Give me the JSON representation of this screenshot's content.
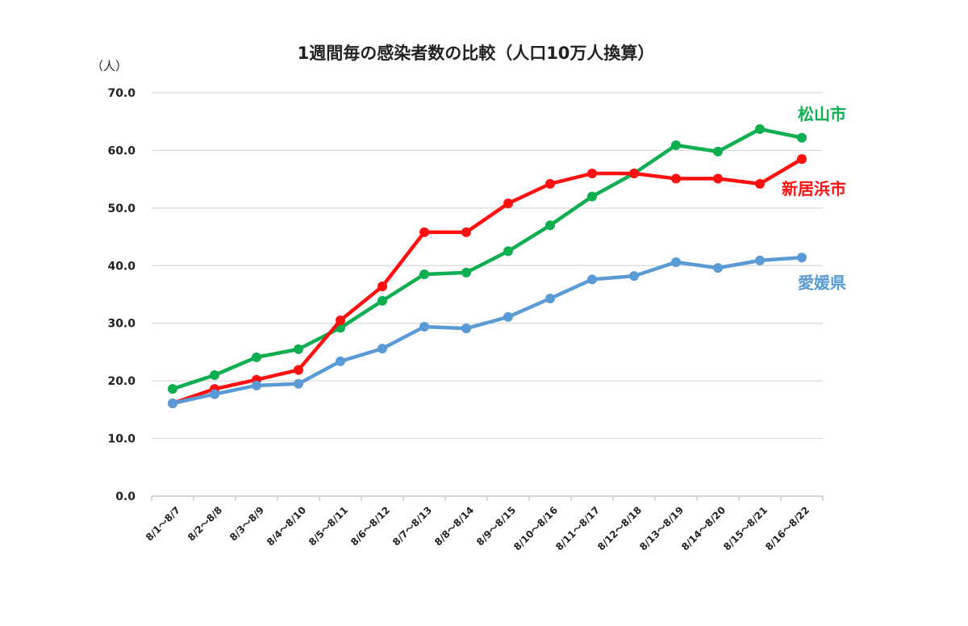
{
  "chart_data": {
    "type": "line",
    "title": "1週間毎の感染者数の比較（人口10万人換算）",
    "ylabel": "（人）",
    "ylim": [
      0,
      70
    ],
    "yticks": [
      "0.0",
      "10.0",
      "20.0",
      "30.0",
      "40.0",
      "50.0",
      "60.0",
      "70.0"
    ],
    "grid": true,
    "categories": [
      "8/1～8/7",
      "8/2～8/8",
      "8/3～8/9",
      "8/4～8/10",
      "8/5～8/11",
      "8/6～8/12",
      "8/7～8/13",
      "8/8～8/14",
      "8/9～8/15",
      "8/10～8/16",
      "8/11～8/17",
      "8/12～8/18",
      "8/13～8/19",
      "8/14～8/20",
      "8/15～8/21",
      "8/16～8/22"
    ],
    "series": [
      {
        "name": "松山市",
        "color": "#0fae50",
        "values": [
          18.6,
          21.0,
          24.1,
          25.5,
          29.2,
          33.9,
          38.5,
          38.8,
          42.5,
          47.0,
          52.0,
          56.0,
          60.9,
          59.8,
          63.7,
          62.2
        ]
      },
      {
        "name": "新居浜市",
        "color": "#ff1010",
        "values": [
          16.1,
          18.6,
          20.2,
          21.9,
          30.5,
          36.4,
          45.8,
          45.8,
          50.8,
          54.2,
          56.0,
          56.0,
          55.1,
          55.1,
          54.2,
          58.5
        ]
      },
      {
        "name": "愛媛県",
        "color": "#5b9bd5",
        "values": [
          16.1,
          17.7,
          19.2,
          19.5,
          23.4,
          25.6,
          29.4,
          29.1,
          31.1,
          34.3,
          37.6,
          38.2,
          40.6,
          39.6,
          40.9,
          41.4
        ]
      }
    ]
  }
}
